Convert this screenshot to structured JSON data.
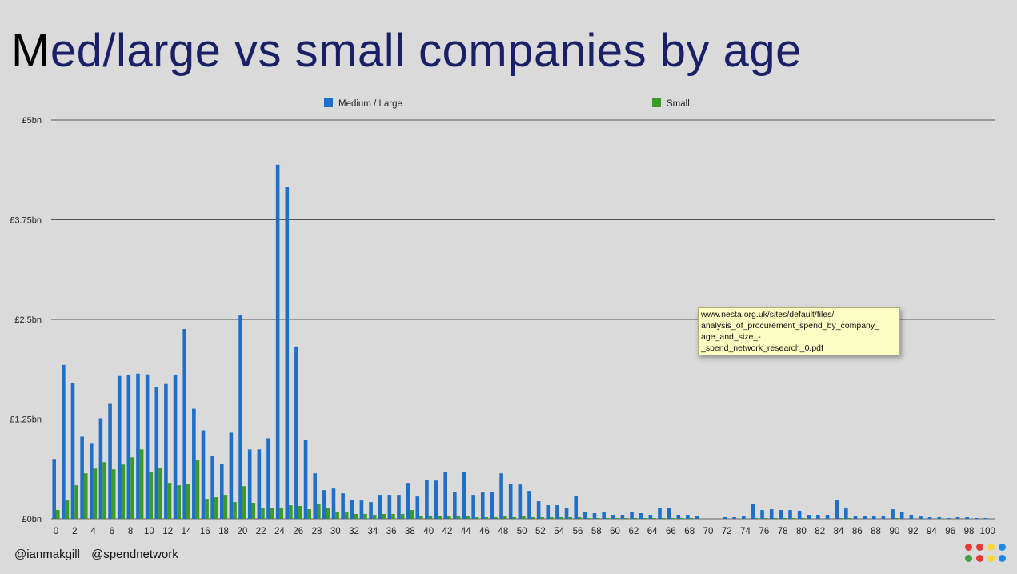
{
  "slide": {
    "title_first": "M",
    "title_rest": "ed/large vs small companies by age",
    "footer": [
      "@ianmakgill",
      "@spendnetwork"
    ]
  },
  "tooltip": {
    "lines": [
      "www.nesta.org.uk/sites/default/files/",
      "analysis_of_procurement_spend_by_company_",
      "age_and_size_-",
      "_spend_network_research_0.pdf"
    ]
  },
  "logo_dot_colors": [
    "#e53935",
    "#e53935",
    "#fdd835",
    "#1e88e5",
    "#43a047",
    "#e53935",
    "#fdd835",
    "#1e88e5"
  ],
  "chart_data": {
    "type": "bar",
    "title": "Med/large vs small companies by age",
    "xlabel": "",
    "ylabel": "",
    "ylim": [
      0,
      5
    ],
    "yticks": [
      0,
      1.25,
      2.5,
      3.75,
      5
    ],
    "ytick_labels": [
      "£0bn",
      "£1.25bn",
      "£2.5bn",
      "£3.75bn",
      "£5bn"
    ],
    "xtick_labels": [
      "0",
      "2",
      "4",
      "6",
      "8",
      "10",
      "12",
      "14",
      "16",
      "18",
      "20",
      "22",
      "24",
      "26",
      "28",
      "30",
      "32",
      "34",
      "36",
      "38",
      "40",
      "42",
      "44",
      "46",
      "48",
      "50",
      "52",
      "54",
      "56",
      "58",
      "60",
      "62",
      "64",
      "66",
      "68",
      "70",
      "72",
      "74",
      "76",
      "78",
      "80",
      "82",
      "84",
      "86",
      "88",
      "90",
      "92",
      "94",
      "96",
      "98",
      "100"
    ],
    "grid": true,
    "legend": "top",
    "categories": [
      0,
      1,
      2,
      3,
      4,
      5,
      6,
      7,
      8,
      9,
      10,
      11,
      12,
      13,
      14,
      15,
      16,
      17,
      18,
      19,
      20,
      21,
      22,
      23,
      24,
      25,
      26,
      27,
      28,
      29,
      30,
      31,
      32,
      33,
      34,
      35,
      36,
      37,
      38,
      39,
      40,
      41,
      42,
      43,
      44,
      45,
      46,
      47,
      48,
      49,
      50,
      51,
      52,
      53,
      54,
      55,
      56,
      57,
      58,
      59,
      60,
      61,
      62,
      63,
      64,
      65,
      66,
      67,
      68,
      69,
      70,
      71,
      72,
      73,
      74,
      75,
      76,
      77,
      78,
      79,
      80,
      81,
      82,
      83,
      84,
      85,
      86,
      87,
      88,
      89,
      90,
      91,
      92,
      93,
      94,
      95,
      96,
      97,
      98,
      99,
      100
    ],
    "series": [
      {
        "name": "Medium / Large",
        "color": "#1f6fc8",
        "values": [
          0.75,
          1.93,
          1.7,
          1.03,
          0.95,
          1.26,
          1.44,
          1.79,
          1.8,
          1.82,
          1.81,
          1.65,
          1.69,
          1.8,
          2.38,
          1.38,
          1.11,
          0.79,
          0.69,
          1.08,
          2.55,
          0.87,
          0.87,
          1.01,
          4.44,
          4.16,
          2.16,
          0.99,
          0.57,
          0.36,
          0.38,
          0.32,
          0.24,
          0.23,
          0.21,
          0.3,
          0.3,
          0.3,
          0.45,
          0.28,
          0.49,
          0.48,
          0.59,
          0.34,
          0.59,
          0.3,
          0.33,
          0.34,
          0.57,
          0.44,
          0.43,
          0.35,
          0.22,
          0.17,
          0.17,
          0.13,
          0.29,
          0.09,
          0.07,
          0.08,
          0.05,
          0.05,
          0.09,
          0.07,
          0.05,
          0.14,
          0.13,
          0.05,
          0.05,
          0.03,
          0.0,
          0.0,
          0.02,
          0.02,
          0.03,
          0.19,
          0.11,
          0.12,
          0.11,
          0.11,
          0.1,
          0.05,
          0.05,
          0.05,
          0.23,
          0.13,
          0.04,
          0.04,
          0.04,
          0.04,
          0.12,
          0.08,
          0.05,
          0.03,
          0.02,
          0.02,
          0.01,
          0.02,
          0.02,
          0.01,
          0.01
        ]
      },
      {
        "name": "Small",
        "color": "#3c9a2a",
        "values": [
          0.11,
          0.23,
          0.42,
          0.57,
          0.63,
          0.71,
          0.62,
          0.68,
          0.77,
          0.87,
          0.59,
          0.64,
          0.45,
          0.42,
          0.44,
          0.74,
          0.25,
          0.27,
          0.3,
          0.21,
          0.41,
          0.2,
          0.13,
          0.14,
          0.13,
          0.17,
          0.16,
          0.12,
          0.18,
          0.14,
          0.09,
          0.08,
          0.06,
          0.06,
          0.05,
          0.06,
          0.06,
          0.06,
          0.11,
          0.04,
          0.03,
          0.03,
          0.03,
          0.03,
          0.03,
          0.02,
          0.02,
          0.02,
          0.03,
          0.02,
          0.03,
          0.02,
          0.02,
          0.02,
          0.02,
          0.02,
          0.02,
          0.01,
          0.01,
          0.01,
          0.01,
          0.01,
          0.01,
          0.01,
          0.01,
          0.01,
          0.01,
          0.01,
          0.01,
          0.0,
          0.0,
          0.0,
          0.0,
          0.0,
          0.0,
          0.01,
          0.01,
          0.01,
          0.01,
          0.01,
          0.01,
          0.0,
          0.0,
          0.0,
          0.01,
          0.01,
          0.0,
          0.0,
          0.0,
          0.0,
          0.01,
          0.0,
          0.0,
          0.0,
          0.0,
          0.0,
          0.0,
          0.0,
          0.0,
          0.0,
          0.0
        ]
      }
    ]
  }
}
